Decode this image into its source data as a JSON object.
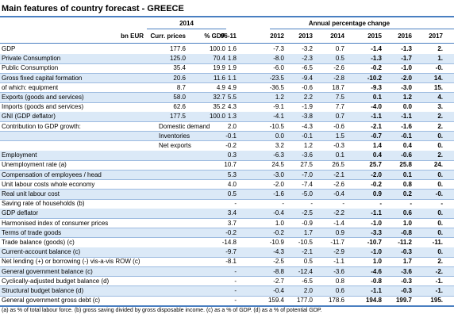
{
  "header": {
    "title": "Main features of country forecast - GREECE",
    "group_2014": "2014",
    "group_change": "Annual percentage change",
    "columns": [
      "bn EUR",
      "Curr. prices",
      "% GDP",
      "96-11",
      "2012",
      "2013",
      "2014",
      "2015",
      "2016",
      "2017"
    ]
  },
  "table": {
    "rows": [
      {
        "label": "GDP",
        "cells": [
          "177.6",
          "100.0",
          "1.6",
          "-7.3",
          "-3.2",
          "0.7",
          "-1.4",
          "-1.3",
          "2."
        ]
      },
      {
        "label": "Private Consumption",
        "cells": [
          "125.0",
          "70.4",
          "1.8",
          "-8.0",
          "-2.3",
          "0.5",
          "-1.3",
          "-1.7",
          "1."
        ]
      },
      {
        "label": "Public Consumption",
        "cells": [
          "35.4",
          "19.9",
          "1.9",
          "-6.0",
          "-6.5",
          "-2.6",
          "-0.2",
          "-1.0",
          "-0."
        ]
      },
      {
        "label": "Gross fixed capital formation",
        "cells": [
          "20.6",
          "11.6",
          "1.1",
          "-23.5",
          "-9.4",
          "-2.8",
          "-10.2",
          "-2.0",
          "14."
        ]
      },
      {
        "label": "of which: equipment",
        "cells": [
          "8.7",
          "4.9",
          "4.9",
          "-36.5",
          "-0.6",
          "18.7",
          "-9.3",
          "-3.0",
          "15."
        ]
      },
      {
        "label": "Exports (goods and services)",
        "cells": [
          "58.0",
          "32.7",
          "5.5",
          "1.2",
          "2.2",
          "7.5",
          "0.1",
          "1.2",
          "4."
        ]
      },
      {
        "label": "Imports (goods and services)",
        "cells": [
          "62.6",
          "35.2",
          "4.3",
          "-9.1",
          "-1.9",
          "7.7",
          "-4.0",
          "0.0",
          "3."
        ]
      },
      {
        "label": "GNI (GDP deflator)",
        "cells": [
          "177.5",
          "100.0",
          "1.3",
          "-4.1",
          "-3.8",
          "0.7",
          "-1.1",
          "-1.1",
          "2."
        ]
      },
      {
        "label": "Contribution to GDP growth:",
        "sub": "Domestic demand",
        "cells": [
          null,
          null,
          "2.0",
          "-10.5",
          "-4.3",
          "-0.6",
          "-2.1",
          "-1.6",
          "2."
        ]
      },
      {
        "sub": "Inventories",
        "cells": [
          null,
          null,
          "-0.1",
          "0.0",
          "-0.1",
          "1.5",
          "-0.7",
          "-0.1",
          "0."
        ]
      },
      {
        "sub": "Net exports",
        "cells": [
          null,
          null,
          "-0.2",
          "3.2",
          "1.2",
          "-0.3",
          "1.4",
          "0.4",
          "0."
        ]
      },
      {
        "label": "Employment",
        "cells": [
          null,
          null,
          "0.3",
          "-6.3",
          "-3.6",
          "0.1",
          "0.4",
          "-0.6",
          "2."
        ]
      },
      {
        "label": "Unemployment rate (a)",
        "cells": [
          null,
          null,
          "10.7",
          "24.5",
          "27.5",
          "26.5",
          "25.7",
          "25.8",
          "24."
        ]
      },
      {
        "label": "Compensation of employees / head",
        "cells": [
          null,
          null,
          "5.3",
          "-3.0",
          "-7.0",
          "-2.1",
          "-2.0",
          "0.1",
          "0."
        ]
      },
      {
        "label": "Unit labour costs whole economy",
        "cells": [
          null,
          null,
          "4.0",
          "-2.0",
          "-7.4",
          "-2.6",
          "-0.2",
          "0.8",
          "0."
        ]
      },
      {
        "label": "Real unit labour cost",
        "cells": [
          null,
          null,
          "0.5",
          "-1.6",
          "-5.0",
          "-0.4",
          "0.9",
          "0.2",
          "-0."
        ]
      },
      {
        "label": "Saving rate of households (b)",
        "cells": [
          null,
          null,
          "-",
          "-",
          "-",
          "-",
          "-",
          "-",
          "-"
        ]
      },
      {
        "label": "GDP deflator",
        "cells": [
          null,
          null,
          "3.4",
          "-0.4",
          "-2.5",
          "-2.2",
          "-1.1",
          "0.6",
          "0."
        ]
      },
      {
        "label": "Harmonised index of consumer prices",
        "cells": [
          null,
          null,
          "3.7",
          "1.0",
          "-0.9",
          "-1.4",
          "-1.0",
          "1.0",
          "0."
        ]
      },
      {
        "label": "Terms of trade goods",
        "cells": [
          null,
          null,
          "-0.2",
          "-0.2",
          "1.7",
          "0.9",
          "-3.3",
          "-0.8",
          "0."
        ]
      },
      {
        "label": "Trade balance (goods) (c)",
        "cells": [
          null,
          null,
          "-14.8",
          "-10.9",
          "-10.5",
          "-11.7",
          "-10.7",
          "-11.2",
          "-11."
        ]
      },
      {
        "label": "Current-account balance (c)",
        "cells": [
          null,
          null,
          "-9.7",
          "-4.3",
          "-2.1",
          "-2.9",
          "-1.0",
          "-0.3",
          "0."
        ]
      },
      {
        "label": "Net lending (+) or borrowing (-) vis-a-vis ROW (c)",
        "cells": [
          null,
          null,
          "-8.1",
          "-2.5",
          "0.5",
          "-1.1",
          "1.0",
          "1.7",
          "2."
        ]
      },
      {
        "label": "General government balance (c)",
        "cells": [
          null,
          null,
          "-",
          "-8.8",
          "-12.4",
          "-3.6",
          "-4.6",
          "-3.6",
          "-2."
        ]
      },
      {
        "label": "Cyclically-adjusted budget balance (d)",
        "cells": [
          null,
          null,
          "-",
          "-2.7",
          "-6.5",
          "0.8",
          "-0.8",
          "-0.3",
          "-1."
        ]
      },
      {
        "label": "Structural budget balance (d)",
        "cells": [
          null,
          null,
          "-",
          "-0.4",
          "2.0",
          "0.6",
          "-1.1",
          "-0.3",
          "-1."
        ]
      },
      {
        "label": "General government gross debt (c)",
        "cells": [
          null,
          null,
          "-",
          "159.4",
          "177.0",
          "178.6",
          "194.8",
          "199.7",
          "195."
        ]
      }
    ]
  },
  "footnote": "(a) as % of total labour force. (b) gross saving divided by gross disposable income. (c) as a % of GDP. (d) as a % of potential GDP."
}
